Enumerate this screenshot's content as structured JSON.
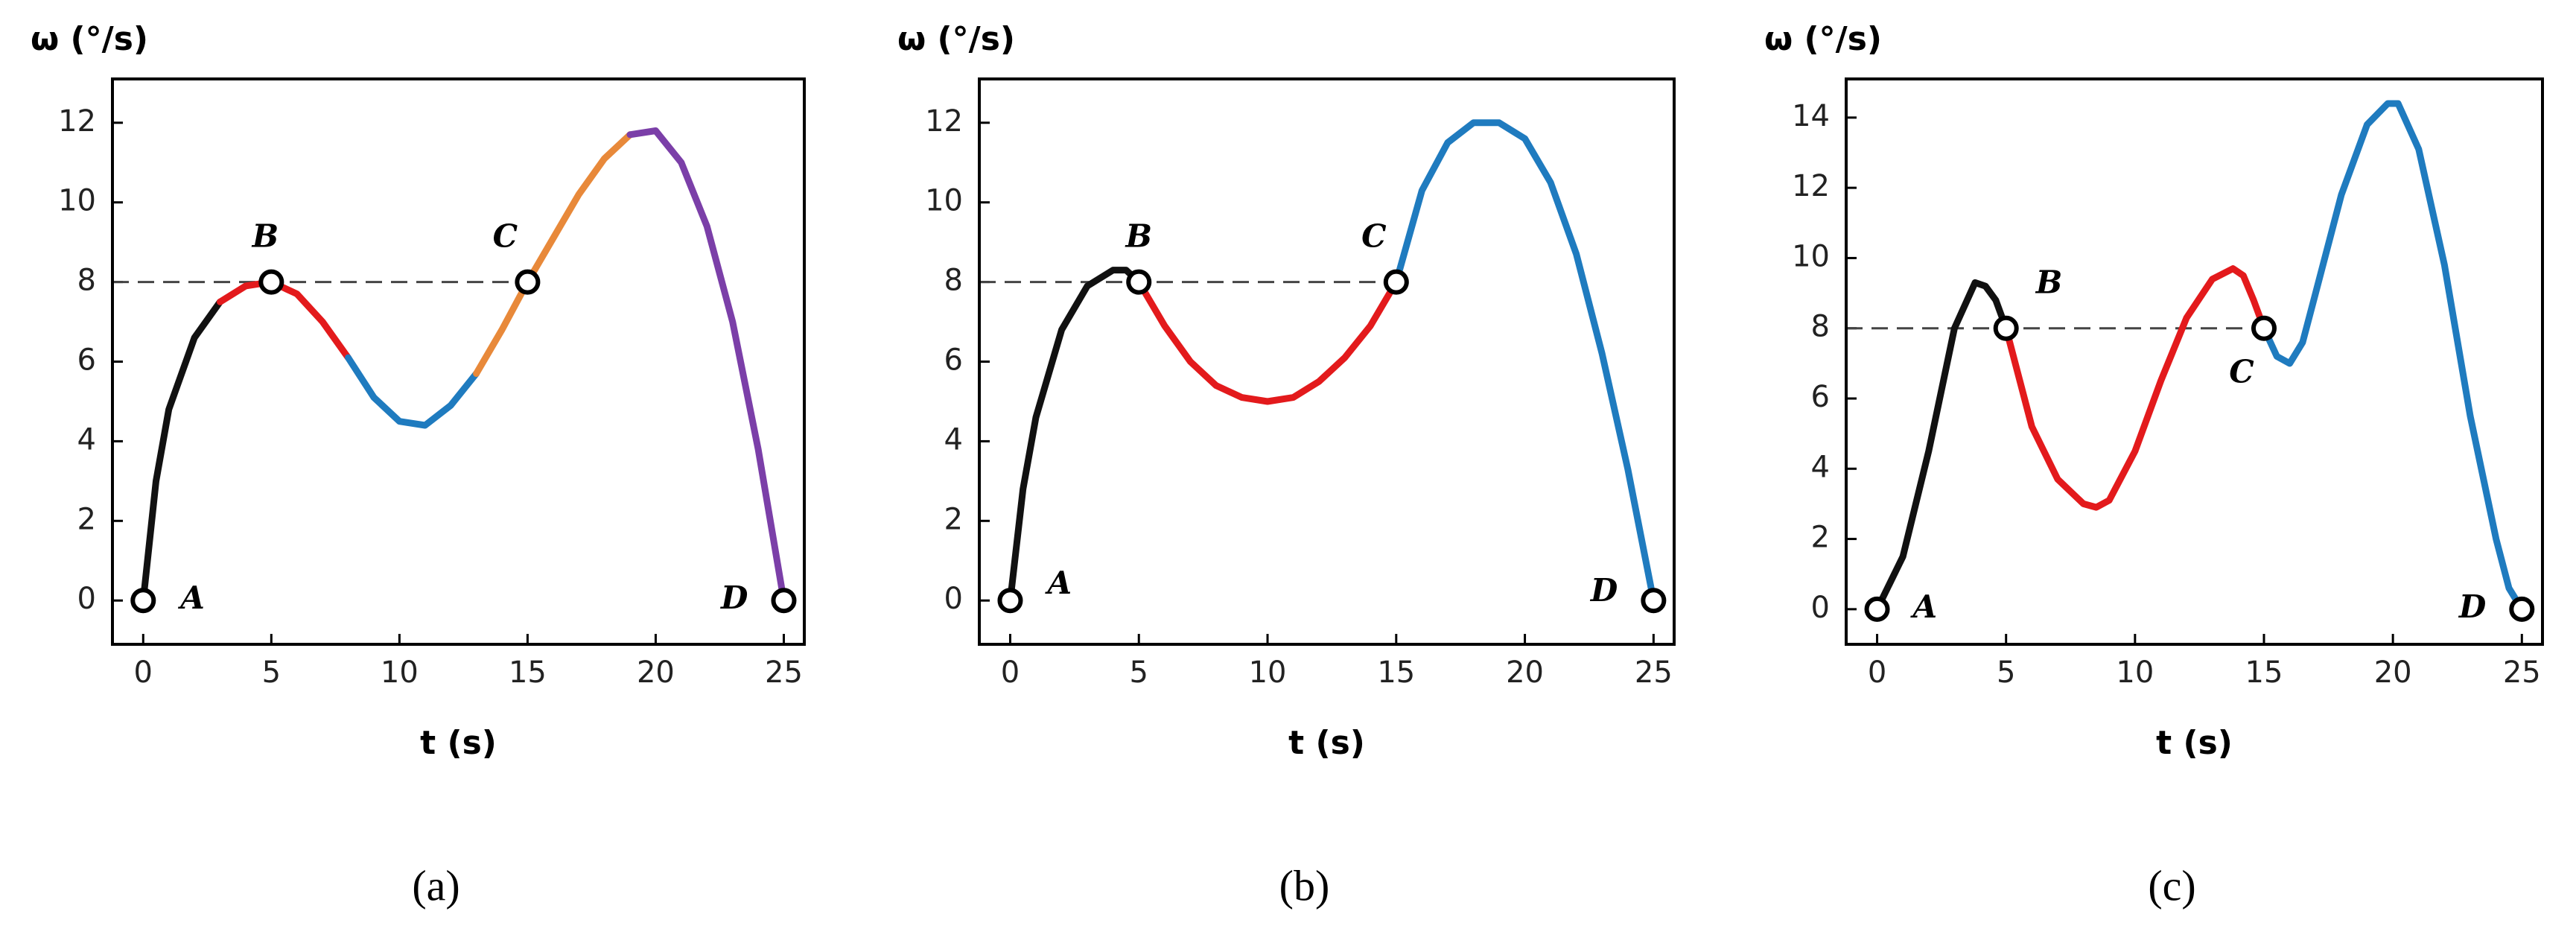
{
  "chart_data": [
    {
      "type": "line",
      "caption": "(a)",
      "y_label": "ω (°/s)",
      "x_label": "t (s)",
      "xlim": [
        -1.2,
        25.8
      ],
      "ylim": [
        -1.1,
        13.1
      ],
      "xticks": [
        0,
        5,
        10,
        15,
        20,
        25
      ],
      "yticks": [
        0,
        2,
        4,
        6,
        8,
        10,
        12
      ],
      "series": [
        {
          "color": "#111111",
          "x": [
            0,
            0.5,
            1,
            2,
            3
          ],
          "values": [
            0,
            3.0,
            4.8,
            6.6,
            7.5
          ]
        },
        {
          "color": "#e31a1c",
          "x": [
            3,
            4,
            5,
            6,
            7,
            8
          ],
          "values": [
            7.5,
            7.9,
            8.0,
            7.7,
            7.0,
            6.1
          ]
        },
        {
          "color": "#1f7bbf",
          "x": [
            8,
            9,
            10,
            11,
            12,
            13
          ],
          "values": [
            6.1,
            5.1,
            4.5,
            4.4,
            4.9,
            5.7
          ]
        },
        {
          "color": "#e8893a",
          "x": [
            13,
            14,
            15,
            16,
            17,
            18,
            19
          ],
          "values": [
            5.7,
            6.8,
            8.0,
            9.1,
            10.2,
            11.1,
            11.7
          ]
        },
        {
          "color": "#7b3fa8",
          "x": [
            19,
            20,
            21,
            22,
            23,
            24,
            25
          ],
          "values": [
            11.7,
            11.8,
            11.0,
            9.4,
            7.0,
            3.8,
            0
          ]
        }
      ],
      "reference_line": {
        "y": 8,
        "x_from": 0,
        "x_to": 15
      },
      "points": [
        {
          "label": "A",
          "x": 0,
          "y": 0
        },
        {
          "label": "B",
          "x": 5,
          "y": 8
        },
        {
          "label": "C",
          "x": 15,
          "y": 8
        },
        {
          "label": "D",
          "x": 25,
          "y": 0
        }
      ]
    },
    {
      "type": "line",
      "caption": "(b)",
      "y_label": "ω (°/s)",
      "x_label": "t (s)",
      "xlim": [
        -1.2,
        25.8
      ],
      "ylim": [
        -1.1,
        13.1
      ],
      "xticks": [
        0,
        5,
        10,
        15,
        20,
        25
      ],
      "yticks": [
        0,
        2,
        4,
        6,
        8,
        10,
        12
      ],
      "series": [
        {
          "color": "#111111",
          "x": [
            0,
            0.5,
            1,
            2,
            3,
            4,
            4.5,
            5
          ],
          "values": [
            0,
            2.8,
            4.6,
            6.8,
            7.9,
            8.3,
            8.3,
            8.0
          ]
        },
        {
          "color": "#e31a1c",
          "x": [
            5,
            6,
            7,
            8,
            9,
            10,
            11,
            12,
            13,
            14,
            15
          ],
          "values": [
            8.0,
            6.9,
            6.0,
            5.4,
            5.1,
            5.0,
            5.1,
            5.5,
            6.1,
            6.9,
            8.0
          ]
        },
        {
          "color": "#1f7bbf",
          "x": [
            15,
            16,
            17,
            18,
            19,
            20,
            21,
            22,
            23,
            24,
            25
          ],
          "values": [
            8.0,
            10.3,
            11.5,
            12.0,
            12.0,
            11.6,
            10.5,
            8.7,
            6.2,
            3.3,
            0
          ]
        }
      ],
      "reference_line": {
        "y": 8,
        "x_from": 0,
        "x_to": 15
      },
      "points": [
        {
          "label": "A",
          "x": 0,
          "y": 0
        },
        {
          "label": "B",
          "x": 5,
          "y": 8
        },
        {
          "label": "C",
          "x": 15,
          "y": 8
        },
        {
          "label": "D",
          "x": 25,
          "y": 0
        }
      ]
    },
    {
      "type": "line",
      "caption": "(c)",
      "y_label": "ω (°/s)",
      "x_label": "t (s)",
      "xlim": [
        -1.2,
        25.8
      ],
      "ylim": [
        -1.0,
        15.1
      ],
      "xticks": [
        0,
        5,
        10,
        15,
        20,
        25
      ],
      "yticks": [
        0,
        2,
        4,
        6,
        8,
        10,
        12,
        14
      ],
      "series": [
        {
          "color": "#111111",
          "x": [
            0,
            1,
            2,
            3,
            3.8,
            4.2,
            4.6,
            5
          ],
          "values": [
            0,
            1.5,
            4.5,
            8.0,
            9.3,
            9.2,
            8.8,
            8.0
          ]
        },
        {
          "color": "#e31a1c",
          "x": [
            5,
            6,
            7,
            8,
            8.5,
            9,
            10,
            11,
            12,
            13,
            13.8,
            14.2,
            14.6,
            15
          ],
          "values": [
            8.0,
            5.2,
            3.7,
            3.0,
            2.9,
            3.1,
            4.5,
            6.5,
            8.3,
            9.4,
            9.7,
            9.5,
            8.8,
            8.0
          ]
        },
        {
          "color": "#1f7bbf",
          "x": [
            15,
            15.5,
            16,
            16.5,
            17,
            18,
            19,
            19.8,
            20.2,
            21,
            22,
            23,
            24,
            24.5,
            25
          ],
          "values": [
            8.0,
            7.2,
            7.0,
            7.6,
            9.0,
            11.8,
            13.8,
            14.4,
            14.4,
            13.1,
            9.8,
            5.5,
            2.0,
            0.6,
            0
          ]
        }
      ],
      "reference_line": {
        "y": 8,
        "x_from": 0,
        "x_to": 15
      },
      "points": [
        {
          "label": "A",
          "x": 0,
          "y": 0
        },
        {
          "label": "B",
          "x": 5,
          "y": 8
        },
        {
          "label": "C",
          "x": 15,
          "y": 8
        },
        {
          "label": "D",
          "x": 25,
          "y": 0
        }
      ]
    }
  ]
}
